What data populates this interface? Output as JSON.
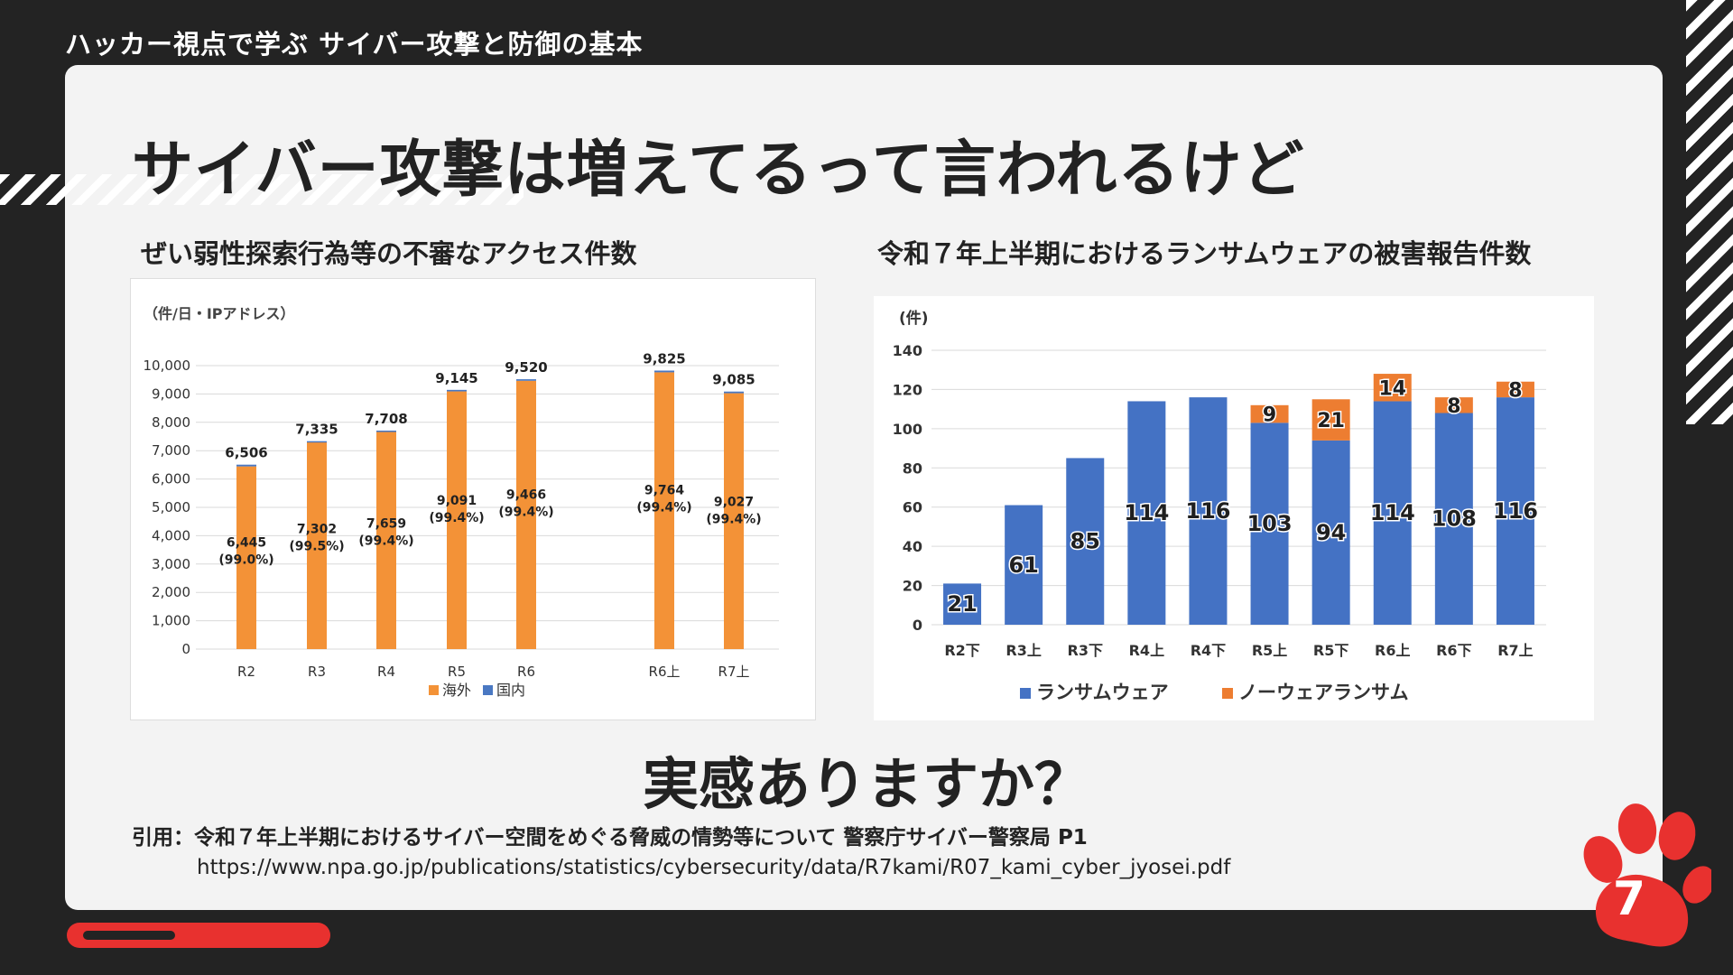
{
  "header": {
    "course_title": "ハッカー視点で学ぶ サイバー攻撃と防御の基本"
  },
  "slide": {
    "title": "サイバー攻撃は増えてるって言われるけど",
    "question": "実感ありますか？",
    "page_number": "7",
    "progress": 0.64,
    "accent_color": "#e8312f"
  },
  "citation": {
    "line1": "引用：令和７年上半期におけるサイバー空間をめぐる脅威の情勢等について 警察庁サイバー警察局 P1",
    "url": "https://www.npa.go.jp/publications/statistics/cybersecurity/data/R7kami/R07_kami_cyber_jyosei.pdf"
  },
  "chart_data": [
    {
      "type": "bar",
      "caption": "ぜい弱性探索行為等の不審なアクセス件数",
      "unit_label": "（件/日・IPアドレス）",
      "categories": [
        "R2",
        "R3",
        "R4",
        "R5",
        "R6",
        "R6上",
        "R7上"
      ],
      "series": [
        {
          "name": "海外",
          "color": "#f39237",
          "values": [
            6445,
            7302,
            7659,
            9091,
            9466,
            9764,
            9027
          ]
        },
        {
          "name": "国内",
          "color": "#4a78c2",
          "values": [
            61,
            33,
            49,
            54,
            54,
            61,
            58
          ]
        }
      ],
      "totals": [
        "6,506",
        "7,335",
        "7,708",
        "9,145",
        "9,520",
        "9,825",
        "9,085"
      ],
      "overseas_labels": [
        "6,445",
        "7,302",
        "7,659",
        "9,091",
        "9,466",
        "9,764",
        "9,027"
      ],
      "share_labels": [
        "(99.0%)",
        "(99.5%)",
        "(99.4%)",
        "(99.4%)",
        "(99.4%)",
        "(99.4%)",
        "(99.4%)"
      ],
      "yticks": [
        "0",
        "1,000",
        "2,000",
        "3,000",
        "4,000",
        "5,000",
        "6,000",
        "7,000",
        "8,000",
        "9,000",
        "10,000"
      ],
      "ylim": [
        0,
        10000
      ],
      "legend": [
        "海外",
        "国内"
      ],
      "grid": true,
      "legend_position": "bottom"
    },
    {
      "type": "bar",
      "stacked": true,
      "caption": "令和７年上半期におけるランサムウェアの被害報告件数",
      "unit_label": "(件)",
      "categories": [
        "R2下",
        "R3上",
        "R3下",
        "R4上",
        "R4下",
        "R5上",
        "R5下",
        "R6上",
        "R6下",
        "R7上"
      ],
      "series": [
        {
          "name": "ランサムウェア",
          "color": "#4472c4",
          "values": [
            21,
            61,
            85,
            114,
            116,
            103,
            94,
            114,
            108,
            116
          ]
        },
        {
          "name": "ノーウェアランサム",
          "color": "#ed7d31",
          "values": [
            0,
            0,
            0,
            0,
            0,
            9,
            21,
            14,
            8,
            8
          ]
        }
      ],
      "yticks": [
        "0",
        "20",
        "40",
        "60",
        "80",
        "100",
        "120",
        "140"
      ],
      "ylim": [
        0,
        140
      ],
      "legend": [
        "ランサムウェア",
        "ノーウェアランサム"
      ],
      "grid": true,
      "legend_position": "bottom"
    }
  ]
}
